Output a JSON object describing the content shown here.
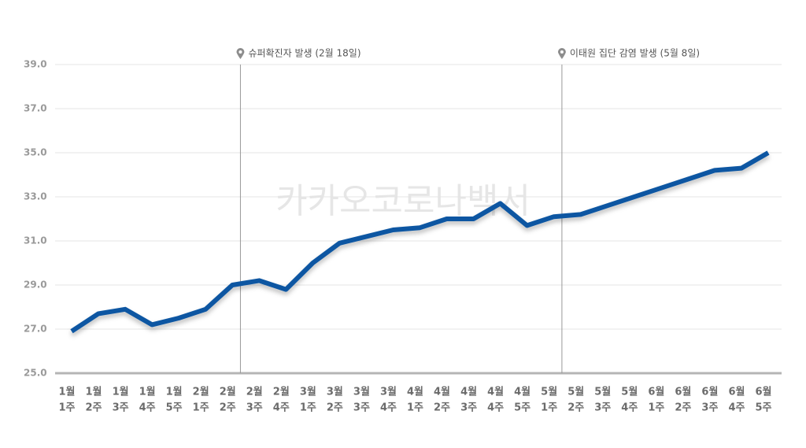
{
  "chart_data": {
    "type": "line",
    "watermark": "카카오코로나백서",
    "categories": [
      [
        "1월",
        "1주"
      ],
      [
        "1월",
        "2주"
      ],
      [
        "1월",
        "3주"
      ],
      [
        "1월",
        "4주"
      ],
      [
        "1월",
        "5주"
      ],
      [
        "2월",
        "1주"
      ],
      [
        "2월",
        "2주"
      ],
      [
        "2월",
        "3주"
      ],
      [
        "2월",
        "4주"
      ],
      [
        "3월",
        "1주"
      ],
      [
        "3월",
        "2주"
      ],
      [
        "3월",
        "3주"
      ],
      [
        "3월",
        "4주"
      ],
      [
        "4월",
        "1주"
      ],
      [
        "4월",
        "2주"
      ],
      [
        "4월",
        "3주"
      ],
      [
        "4월",
        "4주"
      ],
      [
        "4월",
        "5주"
      ],
      [
        "5월",
        "1주"
      ],
      [
        "5월",
        "2주"
      ],
      [
        "5월",
        "3주"
      ],
      [
        "5월",
        "4주"
      ],
      [
        "6월",
        "1주"
      ],
      [
        "6월",
        "2주"
      ],
      [
        "6월",
        "3주"
      ],
      [
        "6월",
        "4주"
      ],
      [
        "6월",
        "5주"
      ]
    ],
    "series": [
      {
        "color": "#0b56a2",
        "values": [
          26.9,
          27.7,
          27.9,
          27.2,
          27.5,
          27.9,
          29.0,
          29.2,
          28.8,
          30.0,
          30.9,
          31.2,
          31.5,
          31.6,
          32.0,
          32.0,
          32.7,
          31.7,
          32.1,
          32.2,
          32.6,
          33.0,
          33.4,
          33.8,
          34.2,
          34.3,
          35.0
        ]
      }
    ],
    "ylim": [
      25,
      39
    ],
    "yticks": [
      {
        "value": 25,
        "label": "25.0"
      },
      {
        "value": 27,
        "label": "27.0"
      },
      {
        "value": 29,
        "label": "29.0"
      },
      {
        "value": 31,
        "label": "31.0"
      },
      {
        "value": 33,
        "label": "33.0"
      },
      {
        "value": 35,
        "label": "35.0"
      },
      {
        "value": 37,
        "label": "37.0"
      },
      {
        "value": 39,
        "label": "39.0"
      }
    ],
    "grid": true,
    "annotations": [
      {
        "text": "슈퍼확진자 발생 (2월 18일)",
        "x": 6.3
      },
      {
        "text": "이태원 집단 감염 발생 (5월 8일)",
        "x": 18.3
      }
    ]
  }
}
